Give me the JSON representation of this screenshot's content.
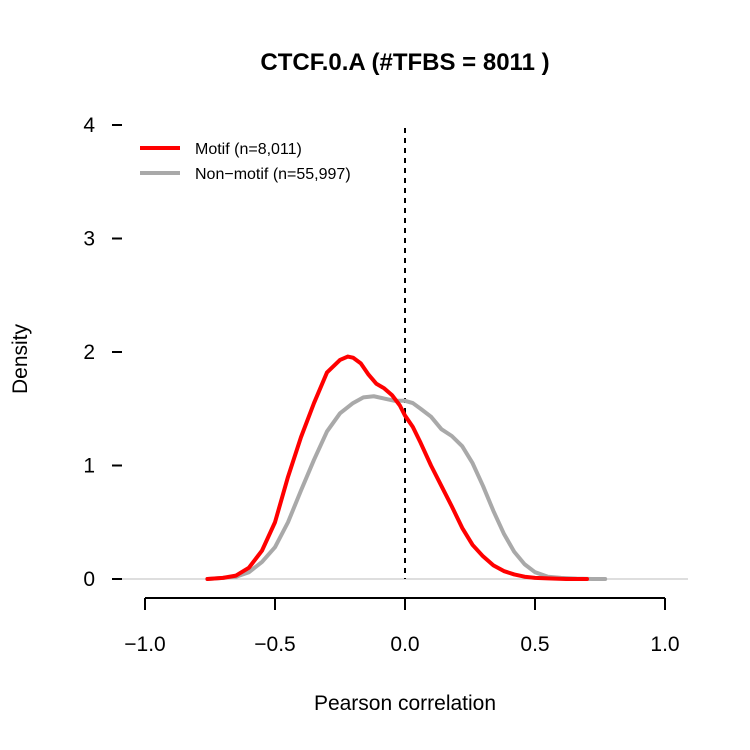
{
  "chart_data": {
    "type": "line",
    "title": "CTCF.0.A (#TFBS = 8011 )",
    "xlabel": "Pearson correlation",
    "ylabel": "Density",
    "xlim": [
      -1.0,
      1.0
    ],
    "ylim": [
      0,
      4
    ],
    "x_ticks": [
      -1.0,
      -0.5,
      0.0,
      0.5,
      1.0
    ],
    "x_tick_labels": [
      "−1.0",
      "−0.5",
      "0.0",
      "0.5",
      "1.0"
    ],
    "y_ticks": [
      0,
      1,
      2,
      3,
      4
    ],
    "y_tick_labels": [
      "0",
      "1",
      "2",
      "3",
      "4"
    ],
    "reference_line": {
      "x": 0.0,
      "style": "dashed",
      "color": "#000000"
    },
    "baseline": {
      "y": 0,
      "color": "#bebebe"
    },
    "legend_position": "top-left",
    "grid": false,
    "series": [
      {
        "name": "Motif (n=8,011)",
        "color": "#ff0000",
        "points": [
          [
            -0.76,
            0.0
          ],
          [
            -0.7,
            0.01
          ],
          [
            -0.65,
            0.03
          ],
          [
            -0.6,
            0.1
          ],
          [
            -0.55,
            0.25
          ],
          [
            -0.5,
            0.5
          ],
          [
            -0.45,
            0.9
          ],
          [
            -0.4,
            1.25
          ],
          [
            -0.35,
            1.55
          ],
          [
            -0.3,
            1.82
          ],
          [
            -0.25,
            1.93
          ],
          [
            -0.22,
            1.96
          ],
          [
            -0.2,
            1.95
          ],
          [
            -0.17,
            1.9
          ],
          [
            -0.14,
            1.8
          ],
          [
            -0.11,
            1.72
          ],
          [
            -0.08,
            1.68
          ],
          [
            -0.05,
            1.62
          ],
          [
            -0.02,
            1.53
          ],
          [
            0.0,
            1.44
          ],
          [
            0.03,
            1.34
          ],
          [
            0.06,
            1.2
          ],
          [
            0.1,
            1.0
          ],
          [
            0.14,
            0.82
          ],
          [
            0.18,
            0.64
          ],
          [
            0.22,
            0.45
          ],
          [
            0.26,
            0.3
          ],
          [
            0.3,
            0.2
          ],
          [
            0.34,
            0.12
          ],
          [
            0.38,
            0.07
          ],
          [
            0.42,
            0.04
          ],
          [
            0.46,
            0.02
          ],
          [
            0.5,
            0.01
          ],
          [
            0.55,
            0.005
          ],
          [
            0.62,
            0.0
          ],
          [
            0.7,
            0.0
          ]
        ]
      },
      {
        "name": "Non−motif (n=55,997)",
        "color": "#a9a9a9",
        "points": [
          [
            -0.76,
            0.0
          ],
          [
            -0.7,
            0.01
          ],
          [
            -0.65,
            0.02
          ],
          [
            -0.6,
            0.06
          ],
          [
            -0.55,
            0.15
          ],
          [
            -0.5,
            0.28
          ],
          [
            -0.45,
            0.5
          ],
          [
            -0.4,
            0.78
          ],
          [
            -0.35,
            1.05
          ],
          [
            -0.3,
            1.3
          ],
          [
            -0.25,
            1.46
          ],
          [
            -0.2,
            1.55
          ],
          [
            -0.16,
            1.6
          ],
          [
            -0.12,
            1.61
          ],
          [
            -0.08,
            1.59
          ],
          [
            -0.04,
            1.57
          ],
          [
            0.0,
            1.57
          ],
          [
            0.03,
            1.55
          ],
          [
            0.06,
            1.5
          ],
          [
            0.1,
            1.43
          ],
          [
            0.14,
            1.32
          ],
          [
            0.18,
            1.26
          ],
          [
            0.22,
            1.17
          ],
          [
            0.26,
            1.02
          ],
          [
            0.3,
            0.82
          ],
          [
            0.34,
            0.6
          ],
          [
            0.38,
            0.4
          ],
          [
            0.42,
            0.24
          ],
          [
            0.46,
            0.13
          ],
          [
            0.5,
            0.06
          ],
          [
            0.55,
            0.02
          ],
          [
            0.6,
            0.01
          ],
          [
            0.66,
            0.003
          ],
          [
            0.72,
            0.0
          ],
          [
            0.77,
            0.0
          ]
        ]
      }
    ]
  }
}
